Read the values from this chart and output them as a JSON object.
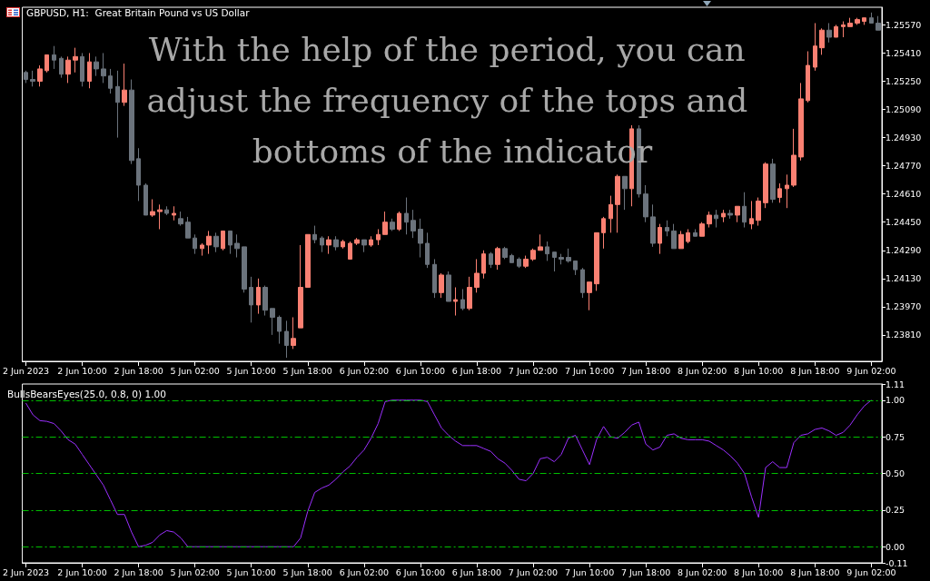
{
  "chart_data": [
    {
      "type": "candlestick",
      "title": "GBPUSD, H1:  Great Britain Pound vs US Dollar",
      "annotations": [
        "With the help of the period, you can adjust the frequency of the tops and bottoms of the indicator"
      ],
      "categories": [
        "2 Jun 2023",
        null,
        null,
        null,
        null,
        null,
        null,
        null,
        "2 Jun 10:00",
        null,
        null,
        null,
        null,
        null,
        null,
        null,
        "2 Jun 18:00",
        null,
        null,
        null,
        null,
        null,
        null,
        null,
        "5 Jun 02:00",
        null,
        null,
        null,
        null,
        null,
        null,
        null,
        "5 Jun 10:00",
        null,
        null,
        null,
        null,
        null,
        null,
        null,
        "5 Jun 18:00",
        null,
        null,
        null,
        null,
        null,
        null,
        null,
        "6 Jun 02:00",
        null,
        null,
        null,
        null,
        null,
        null,
        null,
        "6 Jun 10:00",
        null,
        null,
        null,
        null,
        null,
        null,
        null,
        "6 Jun 18:00",
        null,
        null,
        null,
        null,
        null,
        null,
        null,
        "7 Jun 02:00",
        null,
        null,
        null,
        null,
        null,
        null,
        null,
        "7 Jun 10:00",
        null,
        null,
        null,
        null,
        null,
        null,
        null,
        "7 Jun 18:00",
        null,
        null,
        null,
        null,
        null,
        null,
        null,
        "8 Jun 02:00",
        null,
        null,
        null,
        null,
        null,
        null,
        null,
        "8 Jun 10:00",
        null,
        null,
        null,
        null,
        null,
        null,
        null,
        "8 Jun 18:00",
        null,
        null,
        null,
        null,
        null,
        null,
        null,
        "9 Jun 02:00",
        null
      ],
      "ohlc": [
        [
          1.253,
          1.2531,
          1.2524,
          1.2526
        ],
        [
          1.2526,
          1.2531,
          1.2522,
          1.2525
        ],
        [
          1.2525,
          1.2534,
          1.2522,
          1.2532
        ],
        [
          1.2531,
          1.254,
          1.253,
          1.254
        ],
        [
          1.254,
          1.2545,
          1.2532,
          1.2537
        ],
        [
          1.2538,
          1.2539,
          1.2527,
          1.2529
        ],
        [
          1.2529,
          1.2539,
          1.2524,
          1.2537
        ],
        [
          1.2537,
          1.2544,
          1.253,
          1.2539
        ],
        [
          1.2539,
          1.2541,
          1.2522,
          1.2525
        ],
        [
          1.2525,
          1.2541,
          1.2521,
          1.2536
        ],
        [
          1.2536,
          1.2539,
          1.2528,
          1.2532
        ],
        [
          1.2532,
          1.2541,
          1.2524,
          1.2528
        ],
        [
          1.2528,
          1.2532,
          1.2518,
          1.2521
        ],
        [
          1.2522,
          1.2531,
          1.2493,
          1.2513
        ],
        [
          1.2513,
          1.2535,
          1.2511,
          1.252
        ],
        [
          1.252,
          1.2526,
          1.2478,
          1.248
        ],
        [
          1.2481,
          1.2487,
          1.2457,
          1.2466
        ],
        [
          1.2466,
          1.2467,
          1.2449,
          1.2449
        ],
        [
          1.2449,
          1.2458,
          1.2448,
          1.2451
        ],
        [
          1.2451,
          1.2455,
          1.2441,
          1.2452
        ],
        [
          1.2452,
          1.2454,
          1.2449,
          1.245
        ],
        [
          1.2449,
          1.2454,
          1.2446,
          1.245
        ],
        [
          1.2447,
          1.2451,
          1.2443,
          1.2444
        ],
        [
          1.2445,
          1.2448,
          1.2436,
          1.2436
        ],
        [
          1.2436,
          1.2438,
          1.2427,
          1.243
        ],
        [
          1.243,
          1.2433,
          1.2426,
          1.2432
        ],
        [
          1.2432,
          1.244,
          1.2427,
          1.2437
        ],
        [
          1.2437,
          1.2439,
          1.2428,
          1.2431
        ],
        [
          1.243,
          1.244,
          1.2429,
          1.244
        ],
        [
          1.244,
          1.244,
          1.2427,
          1.2432
        ],
        [
          1.2433,
          1.2438,
          1.2425,
          1.243
        ],
        [
          1.2431,
          1.2431,
          1.2405,
          1.2407
        ],
        [
          1.2408,
          1.2414,
          1.2388,
          1.2398
        ],
        [
          1.2398,
          1.2413,
          1.2393,
          1.2408
        ],
        [
          1.2408,
          1.2409,
          1.2392,
          1.2395
        ],
        [
          1.2396,
          1.2396,
          1.2381,
          1.2391
        ],
        [
          1.2391,
          1.2392,
          1.2376,
          1.2383
        ],
        [
          1.2383,
          1.2389,
          1.2368,
          1.2375
        ],
        [
          1.2375,
          1.2391,
          1.2373,
          1.2379
        ],
        [
          1.2385,
          1.2432,
          1.2385,
          1.2408
        ],
        [
          1.2408,
          1.2438,
          1.2408,
          1.2438
        ],
        [
          1.2438,
          1.2443,
          1.2433,
          1.2435
        ],
        [
          1.2436,
          1.2437,
          1.2428,
          1.2432
        ],
        [
          1.2432,
          1.2437,
          1.2427,
          1.2435
        ],
        [
          1.2435,
          1.2437,
          1.2429,
          1.2431
        ],
        [
          1.2431,
          1.2435,
          1.243,
          1.2434
        ],
        [
          1.2424,
          1.2434,
          1.2424,
          1.2433
        ],
        [
          1.2433,
          1.2436,
          1.2432,
          1.2435
        ],
        [
          1.2435,
          1.2435,
          1.2428,
          1.2432
        ],
        [
          1.2432,
          1.2437,
          1.2431,
          1.2435
        ],
        [
          1.2435,
          1.2441,
          1.2432,
          1.2438
        ],
        [
          1.2438,
          1.2451,
          1.2438,
          1.2445
        ],
        [
          1.2445,
          1.2447,
          1.244,
          1.2441
        ],
        [
          1.2441,
          1.2451,
          1.244,
          1.245
        ],
        [
          1.245,
          1.2459,
          1.2438,
          1.2445
        ],
        [
          1.2446,
          1.2452,
          1.2436,
          1.244
        ],
        [
          1.2441,
          1.2447,
          1.2425,
          1.2433
        ],
        [
          1.2433,
          1.2439,
          1.2419,
          1.2421
        ],
        [
          1.2421,
          1.2424,
          1.2402,
          1.2405
        ],
        [
          1.2405,
          1.2416,
          1.2402,
          1.2415
        ],
        [
          1.2415,
          1.2417,
          1.24,
          1.24
        ],
        [
          1.24,
          1.2408,
          1.2392,
          1.2401
        ],
        [
          1.2401,
          1.2407,
          1.2395,
          1.2396
        ],
        [
          1.2396,
          1.2414,
          1.2395,
          1.2408
        ],
        [
          1.2408,
          1.2424,
          1.2405,
          1.2416
        ],
        [
          1.2416,
          1.2429,
          1.2413,
          1.2427
        ],
        [
          1.2427,
          1.2428,
          1.2419,
          1.2421
        ],
        [
          1.2421,
          1.2431,
          1.2418,
          1.243
        ],
        [
          1.243,
          1.2431,
          1.2424,
          1.2425
        ],
        [
          1.2426,
          1.2427,
          1.2422,
          1.2422
        ],
        [
          1.2424,
          1.2425,
          1.2419,
          1.242
        ],
        [
          1.242,
          1.2426,
          1.2419,
          1.2424
        ],
        [
          1.2424,
          1.243,
          1.2423,
          1.2429
        ],
        [
          1.2429,
          1.2438,
          1.2429,
          1.2431
        ],
        [
          1.2431,
          1.2434,
          1.2423,
          1.2427
        ],
        [
          1.2428,
          1.2428,
          1.2417,
          1.2425
        ],
        [
          1.2425,
          1.2427,
          1.2421,
          1.2424
        ],
        [
          1.2425,
          1.243,
          1.2422,
          1.2423
        ],
        [
          1.2423,
          1.2423,
          1.2415,
          1.2418
        ],
        [
          1.2418,
          1.2419,
          1.2402,
          1.2405
        ],
        [
          1.2405,
          1.2411,
          1.2395,
          1.2411
        ],
        [
          1.241,
          1.2439,
          1.2406,
          1.2439
        ],
        [
          1.2439,
          1.2448,
          1.243,
          1.2447
        ],
        [
          1.2447,
          1.246,
          1.2439,
          1.2455
        ],
        [
          1.2455,
          1.2472,
          1.2439,
          1.2471
        ],
        [
          1.2471,
          1.2471,
          1.2452,
          1.2464
        ],
        [
          1.2464,
          1.25,
          1.2454,
          1.2498
        ],
        [
          1.2498,
          1.25,
          1.2459,
          1.2461
        ],
        [
          1.2461,
          1.2466,
          1.2445,
          1.2448
        ],
        [
          1.2448,
          1.2455,
          1.2431,
          1.2433
        ],
        [
          1.2433,
          1.2444,
          1.2427,
          1.2442
        ],
        [
          1.2442,
          1.2446,
          1.2437,
          1.244
        ],
        [
          1.244,
          1.2444,
          1.243,
          1.243
        ],
        [
          1.243,
          1.244,
          1.243,
          1.2438
        ],
        [
          1.2434,
          1.2441,
          1.2433,
          1.2439
        ],
        [
          1.2439,
          1.2441,
          1.2437,
          1.2437
        ],
        [
          1.2437,
          1.2445,
          1.2437,
          1.2444
        ],
        [
          1.2444,
          1.2451,
          1.2442,
          1.2449
        ],
        [
          1.2449,
          1.2452,
          1.2442,
          1.2447
        ],
        [
          1.2448,
          1.2452,
          1.2445,
          1.245
        ],
        [
          1.245,
          1.2452,
          1.2447,
          1.2449
        ],
        [
          1.2449,
          1.2454,
          1.2445,
          1.2454
        ],
        [
          1.2454,
          1.2462,
          1.2442,
          1.2445
        ],
        [
          1.2444,
          1.2457,
          1.2441,
          1.2447
        ],
        [
          1.2446,
          1.2459,
          1.2443,
          1.2457
        ],
        [
          1.2456,
          1.2479,
          1.2453,
          1.2478
        ],
        [
          1.2478,
          1.2481,
          1.2456,
          1.2458
        ],
        [
          1.2459,
          1.2467,
          1.2456,
          1.2464
        ],
        [
          1.2464,
          1.2472,
          1.2453,
          1.2466
        ],
        [
          1.2466,
          1.2498,
          1.2465,
          1.2483
        ],
        [
          1.2482,
          1.2524,
          1.248,
          1.2515
        ],
        [
          1.2514,
          1.2542,
          1.2513,
          1.2534
        ],
        [
          1.2533,
          1.2558,
          1.2531,
          1.2545
        ],
        [
          1.2544,
          1.2555,
          1.254,
          1.2554
        ],
        [
          1.2554,
          1.2558,
          1.2547,
          1.255
        ],
        [
          1.255,
          1.2557,
          1.255,
          1.2556
        ],
        [
          1.2556,
          1.2559,
          1.255,
          1.2557
        ],
        [
          1.2556,
          1.2561,
          1.2556,
          1.2558
        ],
        [
          1.2558,
          1.2561,
          1.2557,
          1.256
        ],
        [
          1.2559,
          1.2561,
          1.2557,
          1.2561
        ],
        [
          1.2561,
          1.2564,
          1.2558,
          1.2558
        ],
        [
          1.2558,
          1.2562,
          1.2554,
          1.2554
        ]
      ],
      "colors": [
        "#6b737c",
        "#6b737c",
        "#fa8072",
        "#fa8072",
        "#6b737c",
        "#6b737c",
        "#fa8072",
        "#fa8072",
        "#6b737c",
        "#fa8072",
        "#6b737c",
        "#6b737c",
        "#6b737c",
        "#6b737c",
        "#fa8072",
        "#6b737c",
        "#6b737c",
        "#6b737c",
        "#fa8072",
        "#fa8072",
        "#6b737c",
        "#fa8072",
        "#6b737c",
        "#6b737c",
        "#6b737c",
        "#fa8072",
        "#fa8072",
        "#6b737c",
        "#fa8072",
        "#6b737c",
        "#6b737c",
        "#6b737c",
        "#6b737c",
        "#fa8072",
        "#6b737c",
        "#6b737c",
        "#6b737c",
        "#6b737c",
        "#fa8072",
        "#fa8072",
        "#fa8072",
        "#6b737c",
        "#6b737c",
        "#fa8072",
        "#6b737c",
        "#fa8072",
        "#fa8072",
        "#fa8072",
        "#6b737c",
        "#fa8072",
        "#fa8072",
        "#fa8072",
        "#6b737c",
        "#fa8072",
        "#6b737c",
        "#6b737c",
        "#6b737c",
        "#6b737c",
        "#6b737c",
        "#fa8072",
        "#6b737c",
        "#fa8072",
        "#6b737c",
        "#fa8072",
        "#fa8072",
        "#fa8072",
        "#6b737c",
        "#fa8072",
        "#6b737c",
        "#6b737c",
        "#6b737c",
        "#fa8072",
        "#fa8072",
        "#fa8072",
        "#6b737c",
        "#6b737c",
        "#6b737c",
        "#6b737c",
        "#6b737c",
        "#6b737c",
        "#fa8072",
        "#fa8072",
        "#fa8072",
        "#fa8072",
        "#fa8072",
        "#6b737c",
        "#fa8072",
        "#6b737c",
        "#6b737c",
        "#6b737c",
        "#fa8072",
        "#6b737c",
        "#6b737c",
        "#fa8072",
        "#fa8072",
        "#6b737c",
        "#fa8072",
        "#fa8072",
        "#6b737c",
        "#fa8072",
        "#6b737c",
        "#fa8072",
        "#6b737c",
        "#fa8072",
        "#fa8072",
        "#fa8072",
        "#6b737c",
        "#fa8072",
        "#fa8072",
        "#fa8072",
        "#fa8072",
        "#fa8072",
        "#fa8072",
        "#fa8072",
        "#6b737c",
        "#fa8072",
        "#fa8072",
        "#fa8072",
        "#fa8072",
        "#fa8072",
        "#6b737c",
        "#6b737c"
      ],
      "ylim": [
        1.2366,
        1.2567
      ],
      "yticks": [
        {
          "value": 1.2381,
          "label": "1.23810"
        },
        {
          "value": 1.2397,
          "label": "1.23970"
        },
        {
          "value": 1.2413,
          "label": "1.24130"
        },
        {
          "value": 1.2429,
          "label": "1.24290"
        },
        {
          "value": 1.2445,
          "label": "1.24450"
        },
        {
          "value": 1.2461,
          "label": "1.24610"
        },
        {
          "value": 1.2477,
          "label": "1.24770"
        },
        {
          "value": 1.2493,
          "label": "1.24930"
        },
        {
          "value": 1.2509,
          "label": "1.25090"
        },
        {
          "value": 1.2525,
          "label": "1.25250"
        },
        {
          "value": 1.2541,
          "label": "1.25410"
        },
        {
          "value": 1.2557,
          "label": "1.25570"
        }
      ],
      "grid": false
    },
    {
      "type": "line",
      "title": "BullsBearsEyes(25.0, 0.8, 0) 1.00",
      "categories": [
        "2 Jun 2023",
        null,
        null,
        null,
        null,
        null,
        null,
        null,
        "2 Jun 10:00",
        null,
        null,
        null,
        null,
        null,
        null,
        null,
        "2 Jun 18:00",
        null,
        null,
        null,
        null,
        null,
        null,
        null,
        "5 Jun 02:00",
        null,
        null,
        null,
        null,
        null,
        null,
        null,
        "5 Jun 10:00",
        null,
        null,
        null,
        null,
        null,
        null,
        null,
        "5 Jun 18:00",
        null,
        null,
        null,
        null,
        null,
        null,
        null,
        "6 Jun 02:00",
        null,
        null,
        null,
        null,
        null,
        null,
        null,
        "6 Jun 10:00",
        null,
        null,
        null,
        null,
        null,
        null,
        null,
        "6 Jun 18:00",
        null,
        null,
        null,
        null,
        null,
        null,
        null,
        "7 Jun 02:00",
        null,
        null,
        null,
        null,
        null,
        null,
        null,
        "7 Jun 10:00",
        null,
        null,
        null,
        null,
        null,
        null,
        null,
        "7 Jun 18:00",
        null,
        null,
        null,
        null,
        null,
        null,
        null,
        "8 Jun 02:00",
        null,
        null,
        null,
        null,
        null,
        null,
        null,
        "8 Jun 10:00",
        null,
        null,
        null,
        null,
        null,
        null,
        null,
        "8 Jun 18:00",
        null,
        null,
        null,
        null,
        null,
        null,
        null,
        "9 Jun 02:00",
        null
      ],
      "series": [
        {
          "color": "#9b30ff",
          "values": [
            0.98,
            0.9,
            0.86,
            0.855,
            0.84,
            0.79,
            0.73,
            0.7,
            0.63,
            0.56,
            0.49,
            0.42,
            0.32,
            0.22,
            0.22,
            0.1,
            0.0,
            0.01,
            0.03,
            0.08,
            0.11,
            0.1,
            0.06,
            0,
            0,
            0,
            0,
            0,
            0,
            0,
            0,
            0,
            0,
            0,
            0,
            0,
            0,
            0,
            0,
            0.06,
            0.24,
            0.37,
            0.4,
            0.42,
            0.46,
            0.51,
            0.55,
            0.61,
            0.66,
            0.74,
            0.84,
            0.99,
            1,
            1,
            1,
            1,
            1,
            0.99,
            0.9,
            0.81,
            0.76,
            0.72,
            0.69,
            0.69,
            0.69,
            0.67,
            0.65,
            0.6,
            0.57,
            0.52,
            0.46,
            0.45,
            0.5,
            0.6,
            0.61,
            0.58,
            0.63,
            0.74,
            0.76,
            0.66,
            0.56,
            0.73,
            0.82,
            0.75,
            0.74,
            0.78,
            0.83,
            0.85,
            0.7,
            0.66,
            0.68,
            0.76,
            0.77,
            0.74,
            0.73,
            0.73,
            0.73,
            0.72,
            0.69,
            0.66,
            0.62,
            0.57,
            0.5,
            0.34,
            0.2,
            0.54,
            0.58,
            0.54,
            0.54,
            0.71,
            0.76,
            0.77,
            0.8,
            0.81,
            0.79,
            0.76,
            0.78,
            0.83,
            0.9,
            0.96,
            1,
            null
          ]
        }
      ],
      "ylim": [
        -0.11,
        1.11
      ],
      "yticks": [
        {
          "value": -0.11,
          "label": "-0.11"
        },
        {
          "value": 0,
          "label": "0.00"
        },
        {
          "value": 0.25,
          "label": "0.25"
        },
        {
          "value": 0.5,
          "label": "0.50"
        },
        {
          "value": 0.75,
          "label": "0.75"
        },
        {
          "value": 1,
          "label": "1.00"
        },
        {
          "value": 1.11,
          "label": "1.11"
        }
      ],
      "ref_lines": [
        {
          "axis": "y",
          "value": 1,
          "color": "#00c000",
          "line_style": "dashed"
        },
        {
          "axis": "y",
          "value": 0.75,
          "color": "#00c000",
          "line_style": "dashed"
        },
        {
          "axis": "y",
          "value": 0.5,
          "color": "#00c000",
          "line_style": "dashed"
        },
        {
          "axis": "y",
          "value": 0.25,
          "color": "#00c000",
          "line_style": "dashed"
        },
        {
          "axis": "y",
          "value": 0,
          "color": "#00c000",
          "line_style": "dashed"
        }
      ],
      "marker": "none"
    }
  ]
}
